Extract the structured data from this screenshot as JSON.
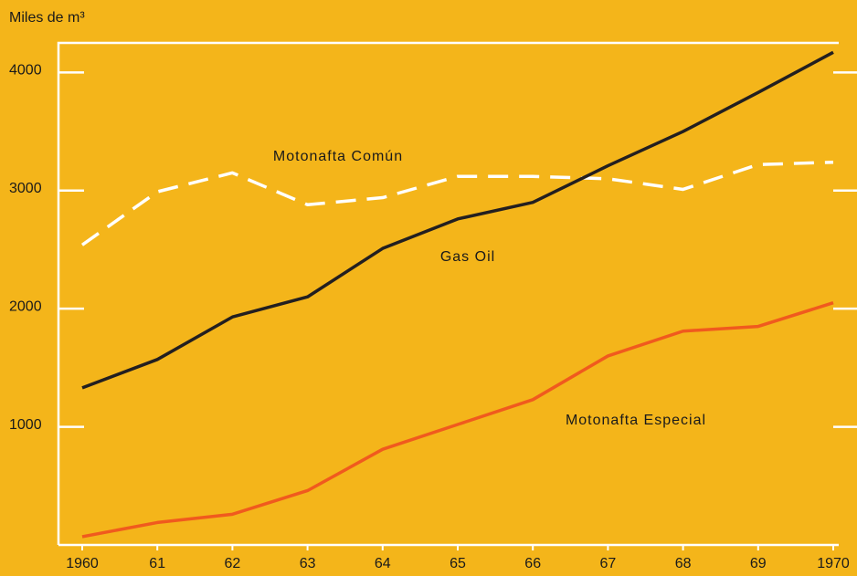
{
  "chart_data": {
    "type": "line",
    "y_label": "Miles de m³",
    "categories": [
      "1960",
      "61",
      "62",
      "63",
      "64",
      "65",
      "66",
      "67",
      "68",
      "69",
      "1970"
    ],
    "series": [
      {
        "name": "Motonafta Común",
        "color": "#ffffff",
        "dashed": true,
        "values": [
          2540,
          2990,
          3150,
          2880,
          2940,
          3120,
          3120,
          3100,
          3010,
          3220,
          3240
        ]
      },
      {
        "name": "Gas Oil",
        "color": "#231f20",
        "dashed": false,
        "values": [
          1330,
          1570,
          1930,
          2100,
          2510,
          2760,
          2900,
          3210,
          3500,
          3830,
          4170
        ]
      },
      {
        "name": "Motonafta Especial",
        "color": "#f05a1e",
        "dashed": false,
        "values": [
          70,
          190,
          260,
          460,
          810,
          1020,
          1230,
          1600,
          1810,
          1850,
          2050
        ]
      }
    ],
    "ylim": [
      0,
      4250
    ],
    "yticks": [
      1000,
      2000,
      3000,
      4000
    ]
  }
}
